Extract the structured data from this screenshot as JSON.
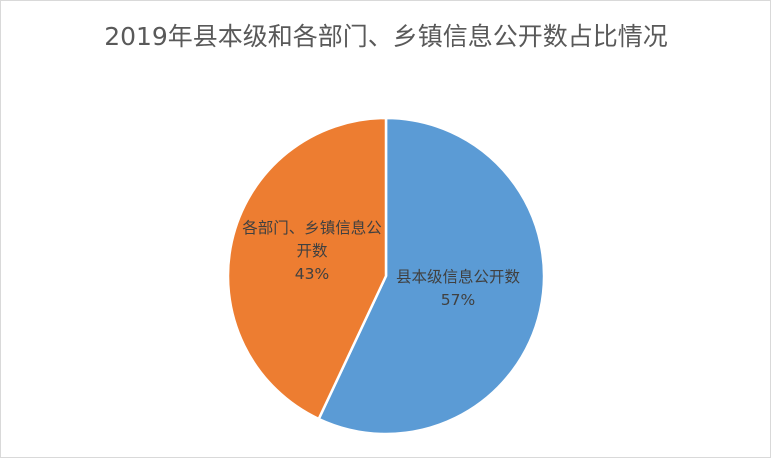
{
  "chart_data": {
    "type": "pie",
    "title": "2019年县本级和各部门、乡镇信息公开数占比情况",
    "slices": [
      {
        "name": "县本级信息公开数",
        "value": 57,
        "label": "57%",
        "color": "#5b9bd5"
      },
      {
        "name": "各部门、乡镇信息公开数",
        "value": 43,
        "label": "43%",
        "color": "#ed7d31"
      }
    ],
    "start_angle": "top",
    "direction": "clockwise",
    "legend": "none"
  }
}
